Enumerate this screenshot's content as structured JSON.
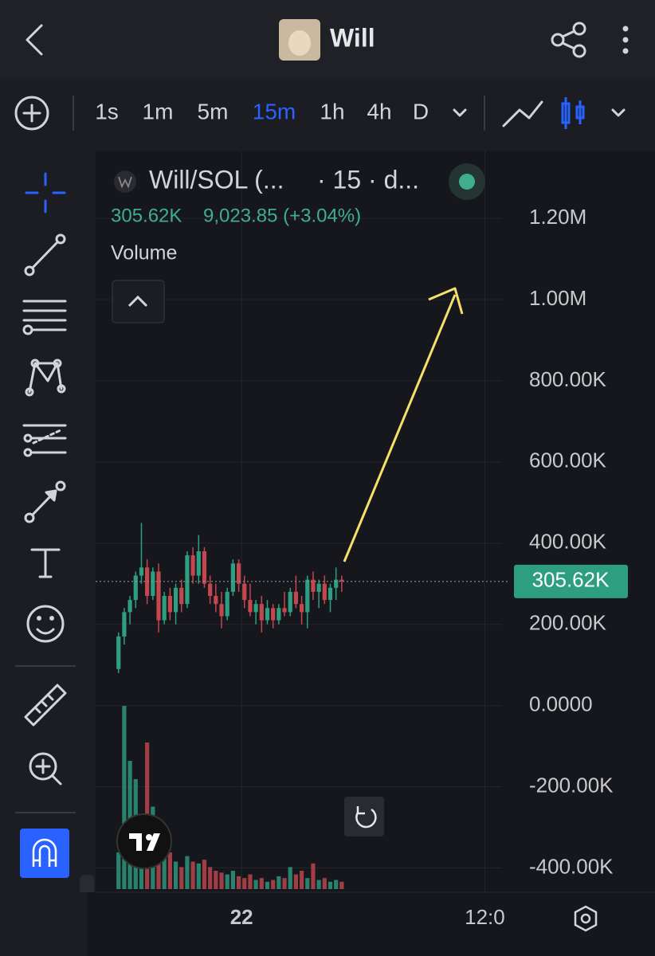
{
  "header": {
    "title": "Will"
  },
  "toolbar": {
    "intervals": [
      "1s",
      "1m",
      "5m",
      "15m",
      "1h",
      "4h",
      "D"
    ],
    "active": 3
  },
  "chart_data": {
    "type": "candlestick",
    "title": "Will/SOL (...",
    "subtitle": "· 15 · d...",
    "last_value": "305.62K",
    "change": "9,023.85 (+3.04%)",
    "volume_label": "Volume",
    "up_color": "#2e9e80",
    "down_color": "#c4474f",
    "open": [
      90000,
      170000,
      230000,
      260000,
      320000,
      340000,
      270000,
      330000,
      210000,
      270000,
      230000,
      290000,
      250000,
      370000,
      320000,
      380000,
      300000,
      270000,
      250000,
      220000,
      280000,
      350000,
      300000,
      260000,
      230000,
      250000,
      210000,
      240000,
      210000,
      240000,
      230000,
      280000,
      250000,
      230000,
      310000,
      280000,
      300000,
      260000,
      290000,
      310000
    ],
    "high": [
      180000,
      240000,
      270000,
      330000,
      450000,
      360000,
      340000,
      350000,
      280000,
      290000,
      300000,
      310000,
      380000,
      390000,
      420000,
      390000,
      320000,
      300000,
      280000,
      290000,
      360000,
      360000,
      320000,
      300000,
      260000,
      270000,
      260000,
      250000,
      250000,
      280000,
      290000,
      320000,
      270000,
      320000,
      330000,
      310000,
      320000,
      300000,
      340000,
      320000
    ],
    "low": [
      80000,
      150000,
      200000,
      240000,
      300000,
      250000,
      260000,
      180000,
      200000,
      210000,
      200000,
      230000,
      240000,
      300000,
      300000,
      290000,
      250000,
      230000,
      190000,
      210000,
      270000,
      280000,
      240000,
      220000,
      200000,
      180000,
      200000,
      190000,
      200000,
      220000,
      220000,
      240000,
      200000,
      190000,
      260000,
      240000,
      250000,
      230000,
      260000,
      280000
    ],
    "close": [
      170000,
      230000,
      260000,
      320000,
      340000,
      270000,
      330000,
      210000,
      270000,
      230000,
      290000,
      250000,
      370000,
      320000,
      380000,
      300000,
      270000,
      250000,
      220000,
      280000,
      350000,
      300000,
      260000,
      230000,
      250000,
      210000,
      240000,
      210000,
      240000,
      230000,
      280000,
      250000,
      230000,
      310000,
      280000,
      300000,
      260000,
      290000,
      310000,
      305620
    ],
    "volume": [
      20,
      100,
      70,
      60,
      40,
      80,
      45,
      30,
      25,
      20,
      15,
      12,
      18,
      15,
      14,
      16,
      12,
      10,
      9,
      8,
      10,
      7,
      6,
      8,
      5,
      6,
      4,
      5,
      7,
      6,
      12,
      8,
      10,
      6,
      14,
      5,
      6,
      4,
      5,
      4
    ],
    "last_price": {
      "value": 305620,
      "label": "305.62K"
    },
    "ylim": [
      -460000,
      1365000
    ],
    "yticks": [
      {
        "value": 1200000,
        "label": "1.20M"
      },
      {
        "value": 1000000,
        "label": "1.00M"
      },
      {
        "value": 800000,
        "label": "800.00K"
      },
      {
        "value": 600000,
        "label": "600.00K"
      },
      {
        "value": 400000,
        "label": "400.00K"
      },
      {
        "value": 200000,
        "label": "200.00K"
      },
      {
        "value": 0,
        "label": "0.0000"
      },
      {
        "value": -200000,
        "label": "-200.00K"
      },
      {
        "value": -400000,
        "label": "-400.00K"
      }
    ],
    "xlim": [
      -4,
      67
    ],
    "xticks": [
      {
        "value": 21.5,
        "label": "22"
      },
      {
        "value": 64,
        "label": "12:0"
      }
    ],
    "grid": true
  }
}
